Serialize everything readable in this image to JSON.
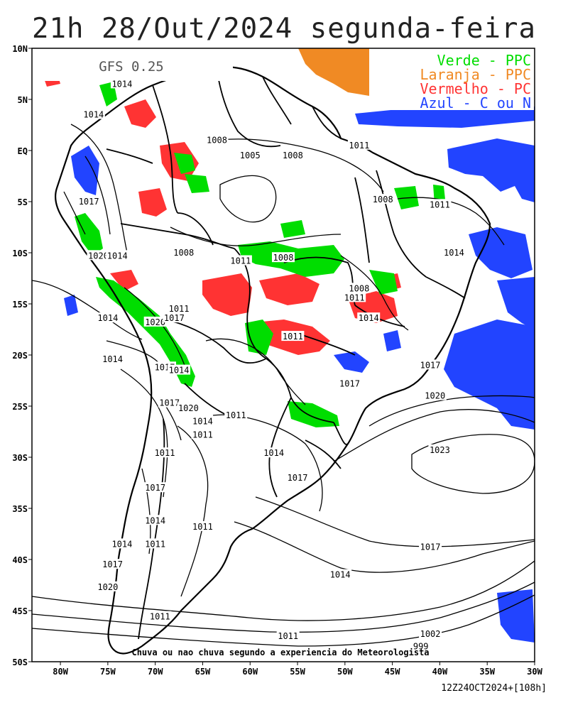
{
  "title": "21h 28/Out/2024 segunda-feira",
  "model_label": "GFS 0.25",
  "legend": [
    {
      "label": "Verde - PPC",
      "color": "#00dd00"
    },
    {
      "label": "Laranja - PPC",
      "color": "#f08a24"
    },
    {
      "label": "Vermelho - PC",
      "color": "#ff3333"
    },
    {
      "label": "Azul - C ou N",
      "color": "#2244ff"
    }
  ],
  "footer_caption": "Chuva ou nao chuva segundo a experiencia do Meteorologista",
  "run_info": "12Z24OCT2024+[108h]",
  "lat_labels": [
    "10N",
    "5N",
    "EQ",
    "5S",
    "10S",
    "15S",
    "20S",
    "25S",
    "30S",
    "35S",
    "40S",
    "45S",
    "50S"
  ],
  "lon_labels": [
    "80W",
    "75W",
    "70W",
    "65W",
    "60W",
    "55W",
    "50W",
    "45W",
    "40W",
    "35W",
    "30W"
  ],
  "isobar_labels": [
    {
      "text": "1014",
      "lon": -73.5,
      "lat": 6.5
    },
    {
      "text": "1014",
      "lon": -76.5,
      "lat": 3.5
    },
    {
      "text": "1008",
      "lon": -63.5,
      "lat": 1.0
    },
    {
      "text": "1005",
      "lon": -60.0,
      "lat": -0.5
    },
    {
      "text": "1008",
      "lon": -55.5,
      "lat": -0.5
    },
    {
      "text": "1011",
      "lon": -48.5,
      "lat": 0.5
    },
    {
      "text": "1017",
      "lon": -77.0,
      "lat": -5.0
    },
    {
      "text": "1008",
      "lon": -46.0,
      "lat": -4.8
    },
    {
      "text": "1011",
      "lon": -40.0,
      "lat": -5.3
    },
    {
      "text": "1008",
      "lon": -67.0,
      "lat": -10.0
    },
    {
      "text": "1014",
      "lon": -38.5,
      "lat": -10.0
    },
    {
      "text": "1020",
      "lon": -76.0,
      "lat": -10.3
    },
    {
      "text": "1014",
      "lon": -74.0,
      "lat": -10.3
    },
    {
      "text": "1011",
      "lon": -61.0,
      "lat": -10.8
    },
    {
      "text": "1008",
      "lon": -56.5,
      "lat": -10.5
    },
    {
      "text": "1008",
      "lon": -48.5,
      "lat": -13.5
    },
    {
      "text": "1011",
      "lon": -49.0,
      "lat": -14.4
    },
    {
      "text": "1011",
      "lon": -67.5,
      "lat": -15.5
    },
    {
      "text": "1014",
      "lon": -75.0,
      "lat": -16.4
    },
    {
      "text": "1020",
      "lon": -70.0,
      "lat": -16.8
    },
    {
      "text": "1017",
      "lon": -68.0,
      "lat": -16.4
    },
    {
      "text": "1014",
      "lon": -47.5,
      "lat": -16.4
    },
    {
      "text": "1011",
      "lon": -55.5,
      "lat": -18.2
    },
    {
      "text": "1014",
      "lon": -74.5,
      "lat": -20.4
    },
    {
      "text": "1017",
      "lon": -69.0,
      "lat": -21.2
    },
    {
      "text": "1014",
      "lon": -67.5,
      "lat": -21.5
    },
    {
      "text": "1017",
      "lon": -49.5,
      "lat": -22.8
    },
    {
      "text": "1017",
      "lon": -41.0,
      "lat": -21.0
    },
    {
      "text": "1020",
      "lon": -40.5,
      "lat": -24.0
    },
    {
      "text": "1017",
      "lon": -68.5,
      "lat": -24.7
    },
    {
      "text": "1020",
      "lon": -66.5,
      "lat": -25.2
    },
    {
      "text": "1011",
      "lon": -61.5,
      "lat": -25.9
    },
    {
      "text": "1014",
      "lon": -65.0,
      "lat": -26.5
    },
    {
      "text": "1011",
      "lon": -65.0,
      "lat": -27.8
    },
    {
      "text": "1023",
      "lon": -40.0,
      "lat": -29.3
    },
    {
      "text": "1014",
      "lon": -57.5,
      "lat": -29.6
    },
    {
      "text": "1011",
      "lon": -69.0,
      "lat": -29.6
    },
    {
      "text": "1017",
      "lon": -55.0,
      "lat": -32.0
    },
    {
      "text": "1017",
      "lon": -70.0,
      "lat": -33.0
    },
    {
      "text": "1014",
      "lon": -70.0,
      "lat": -36.2
    },
    {
      "text": "1011",
      "lon": -65.0,
      "lat": -36.8
    },
    {
      "text": "1014",
      "lon": -73.5,
      "lat": -38.5
    },
    {
      "text": "1011",
      "lon": -70.0,
      "lat": -38.5
    },
    {
      "text": "1017",
      "lon": -41.0,
      "lat": -38.8
    },
    {
      "text": "1017",
      "lon": -74.5,
      "lat": -40.5
    },
    {
      "text": "1014",
      "lon": -50.5,
      "lat": -41.5
    },
    {
      "text": "1020",
      "lon": -75.0,
      "lat": -42.7
    },
    {
      "text": "1011",
      "lon": -69.5,
      "lat": -45.6
    },
    {
      "text": "1011",
      "lon": -56.0,
      "lat": -47.5
    },
    {
      "text": "1002",
      "lon": -41.0,
      "lat": -47.3
    },
    {
      "text": "999",
      "lon": -42.0,
      "lat": -48.5
    }
  ]
}
